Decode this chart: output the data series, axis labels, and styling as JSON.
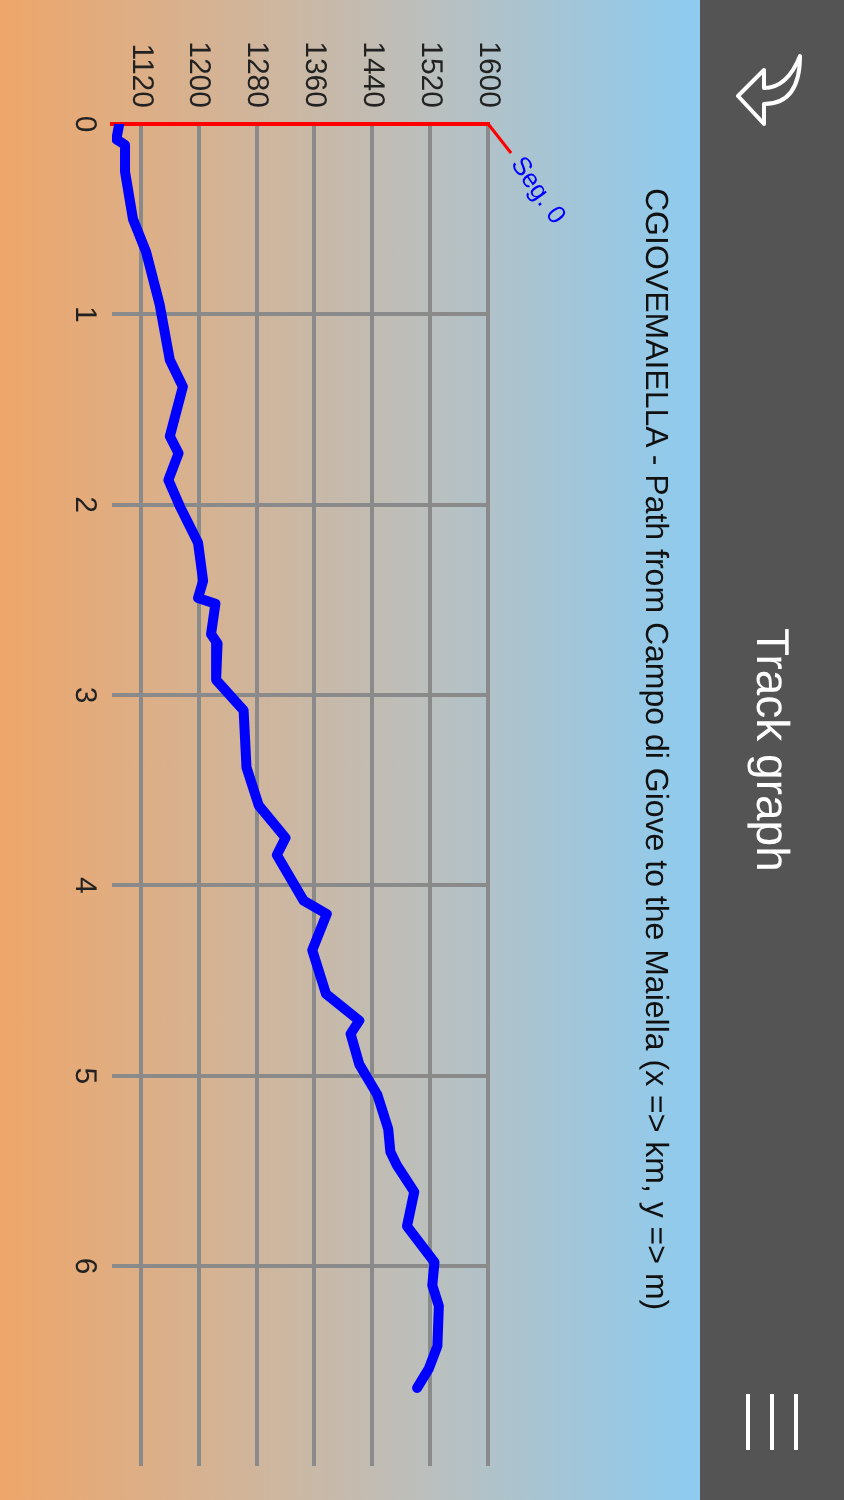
{
  "chart_data": {
    "type": "line",
    "title": "CGIOVEMAIELLA - Path from Campo di Giove to the Maiella (x => km, y => m)",
    "annotations": [
      "Track graph"
    ],
    "series": [
      {
        "name": "Seg. 0",
        "color": "#0000ff",
        "x": [
          1090,
          1086,
          1098,
          1098,
          1109,
          1127,
          1146,
          1160,
          1178,
          1160,
          1172,
          1158,
          1174,
          1199,
          1206,
          1199,
          1223,
          1217,
          1226,
          1224,
          1262,
          1266,
          1283,
          1320,
          1308,
          1345,
          1377,
          1357,
          1376,
          1422,
          1410,
          1422,
          1447,
          1462,
          1465,
          1474,
          1498,
          1488,
          1526,
          1523,
          1532,
          1530,
          1518,
          1502
        ],
        "values": [
          0,
          0.08,
          0.11,
          0.25,
          0.5,
          0.67,
          0.95,
          1.24,
          1.38,
          1.64,
          1.73,
          1.87,
          2.01,
          2.2,
          2.4,
          2.49,
          2.52,
          2.68,
          2.73,
          2.92,
          3.08,
          3.38,
          3.58,
          3.75,
          3.84,
          4.08,
          4.15,
          4.34,
          4.57,
          4.71,
          4.78,
          4.94,
          5.1,
          5.28,
          5.4,
          5.47,
          5.61,
          5.79,
          5.98,
          6.1,
          6.21,
          6.42,
          6.54,
          6.64
        ]
      }
    ],
    "xlim": [
      1080,
      1600
    ],
    "xticks": [
      1120,
      1200,
      1280,
      1360,
      1440,
      1520,
      1600
    ],
    "ylim": [
      7.05,
      0
    ],
    "yticks": [
      0,
      1,
      2,
      3,
      4,
      5,
      6
    ],
    "grid": true,
    "legend": false
  }
}
